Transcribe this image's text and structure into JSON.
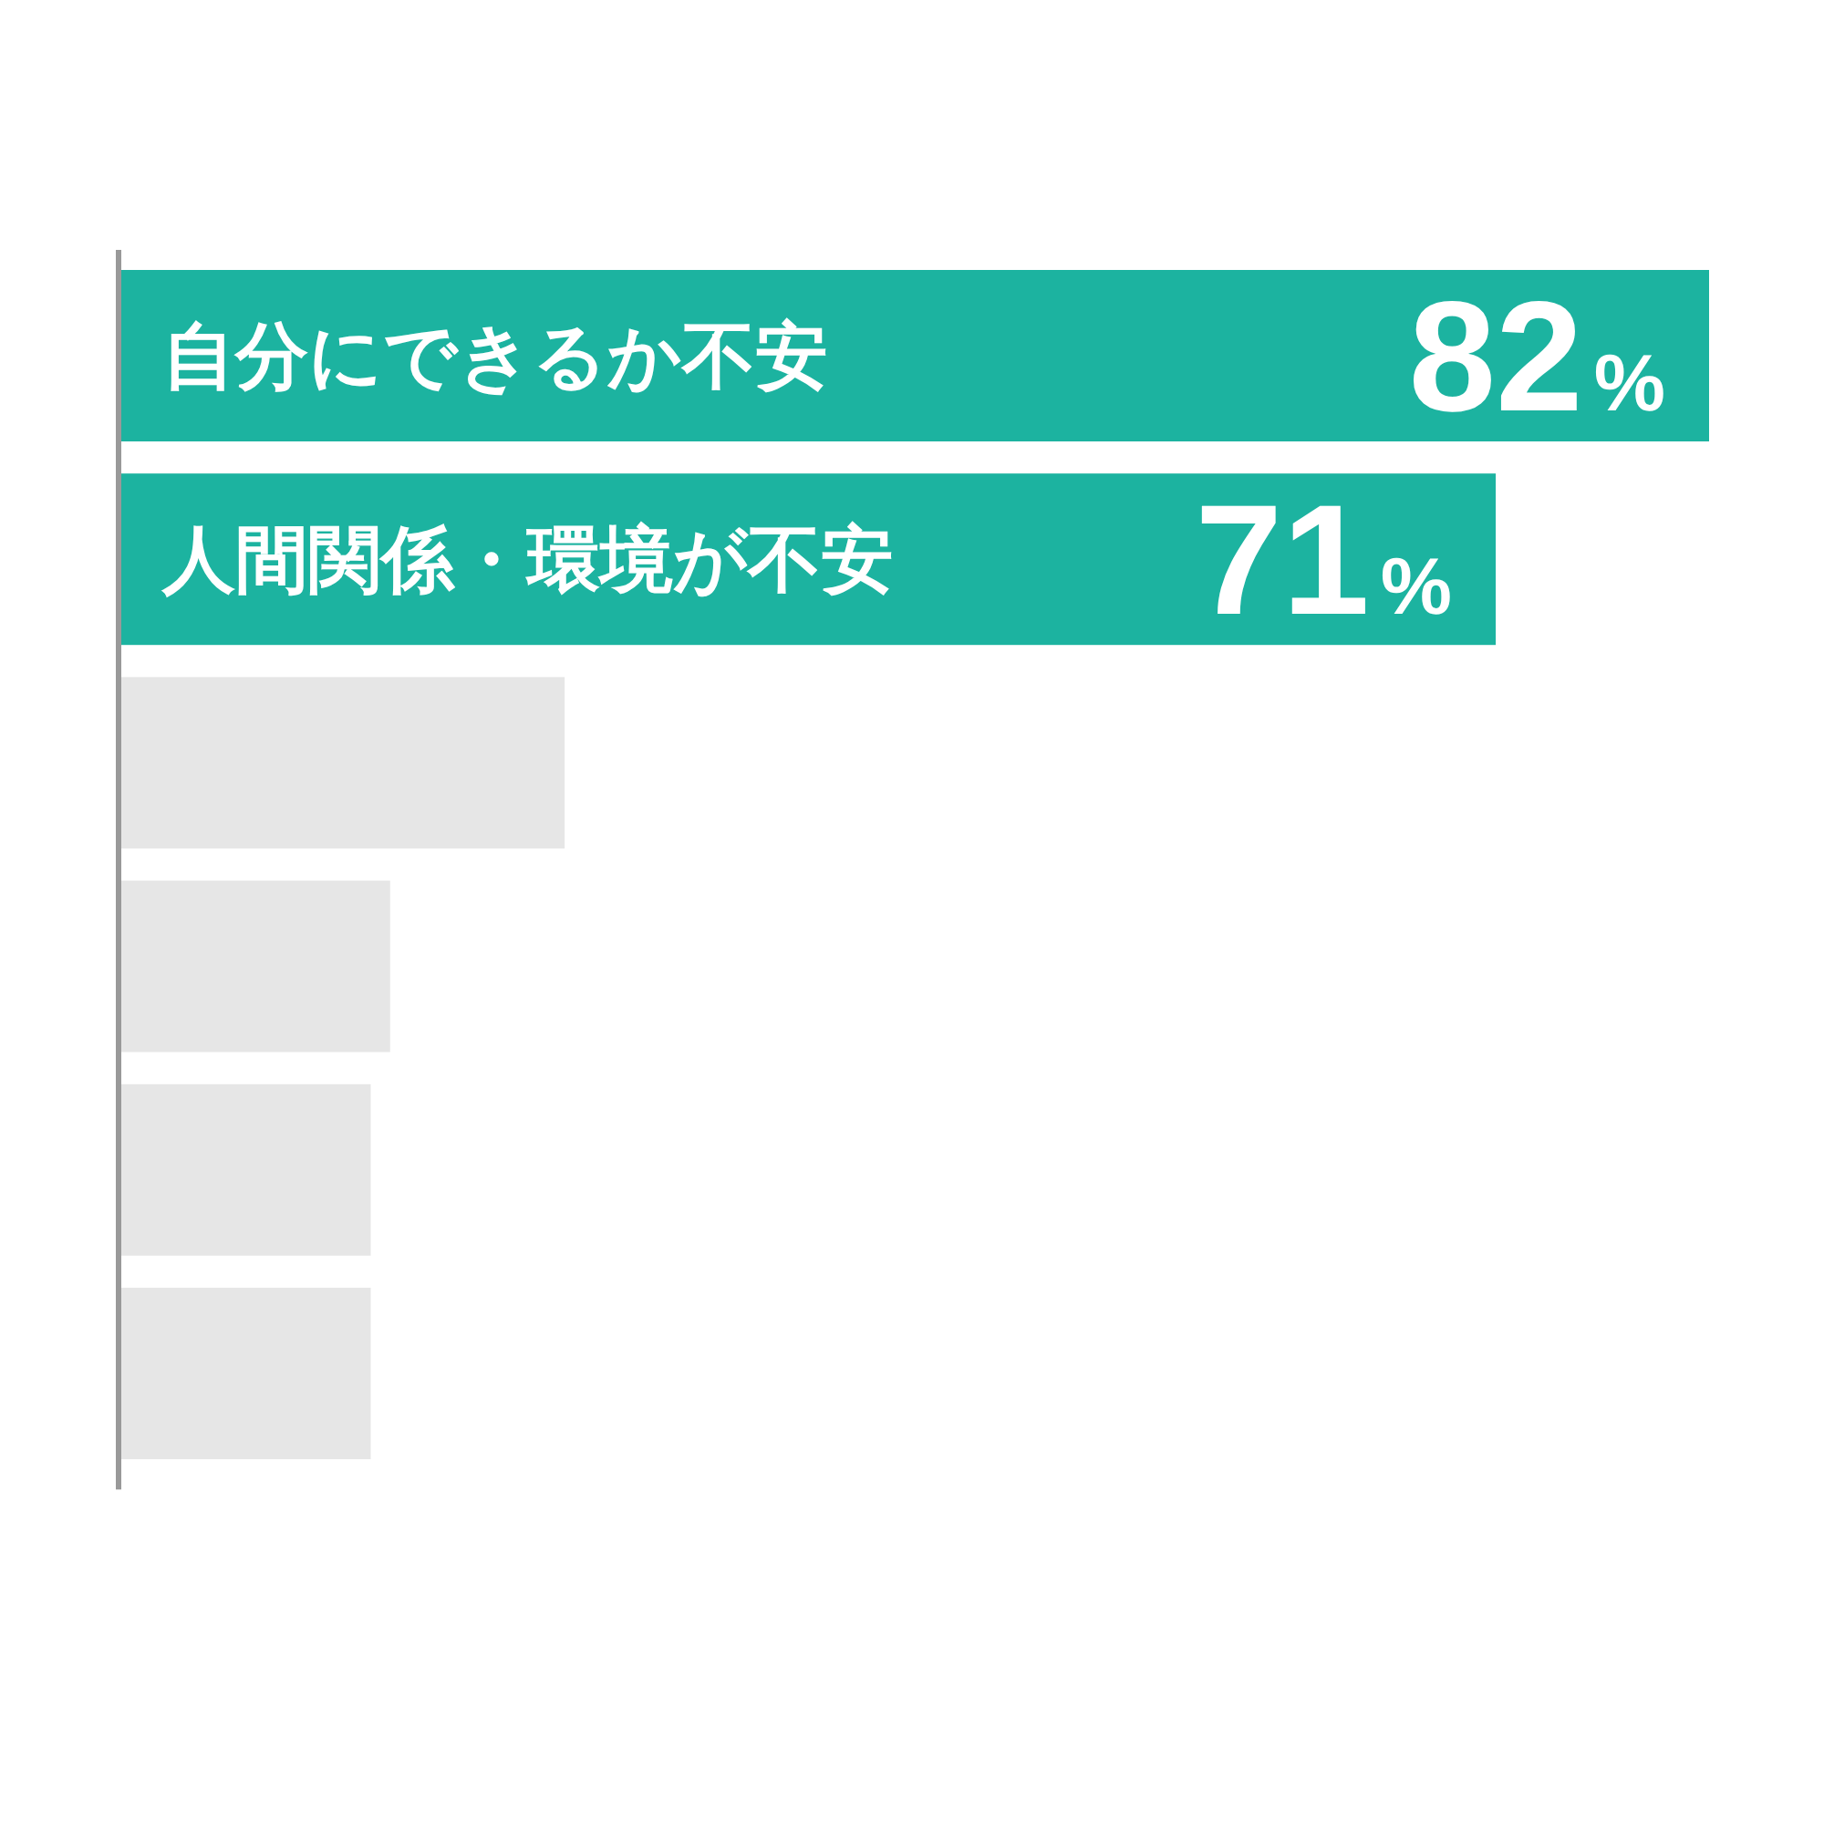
{
  "chart_data": {
    "type": "bar",
    "orientation": "horizontal",
    "categories": [
      "自分にできるか不安",
      "人間関係・環境が不安",
      null,
      null,
      null,
      null
    ],
    "values": [
      82,
      71,
      23,
      14,
      13,
      13
    ],
    "colors": [
      "#1cb3a0",
      "#1cb3a0",
      "#e6e6e6",
      "#e6e6e6",
      "#e6e6e6",
      "#e6e6e6"
    ],
    "value_labels": [
      "82%",
      "71%",
      null,
      null,
      null,
      null
    ]
  }
}
